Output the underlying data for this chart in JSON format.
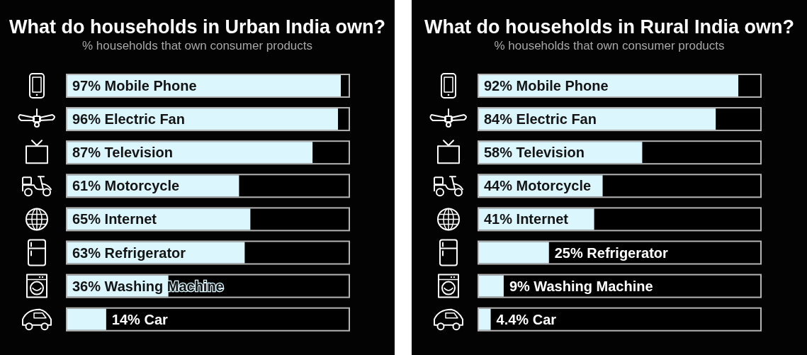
{
  "chart_data": [
    {
      "type": "bar",
      "orientation": "horizontal",
      "title": "What do households in Urban India own?",
      "subtitle": "% households that own consumer products",
      "categories": [
        "Mobile Phone",
        "Electric Fan",
        "Television",
        "Motorcycle",
        "Internet",
        "Refrigerator",
        "Washing Machine",
        "Car"
      ],
      "values": [
        97,
        96,
        87,
        61,
        65,
        63,
        36,
        14
      ],
      "value_labels": [
        "97%",
        "96%",
        "87%",
        "61%",
        "65%",
        "63%",
        "36%",
        "14%"
      ],
      "color": "#dcf6fe",
      "xlim": [
        0,
        100
      ]
    },
    {
      "type": "bar",
      "orientation": "horizontal",
      "title": "What do households in Rural India own?",
      "subtitle": "% households that own consumer products",
      "categories": [
        "Mobile Phone",
        "Electric Fan",
        "Television",
        "Motorcycle",
        "Internet",
        "Refrigerator",
        "Washing Machine",
        "Car"
      ],
      "values": [
        92,
        84,
        58,
        44,
        41,
        25,
        9,
        4.4
      ],
      "value_labels": [
        "92%",
        "84%",
        "58%",
        "44%",
        "41%",
        "25%",
        "9%",
        "4.4%"
      ],
      "color": "#dcf6fe",
      "xlim": [
        0,
        100
      ]
    }
  ]
}
